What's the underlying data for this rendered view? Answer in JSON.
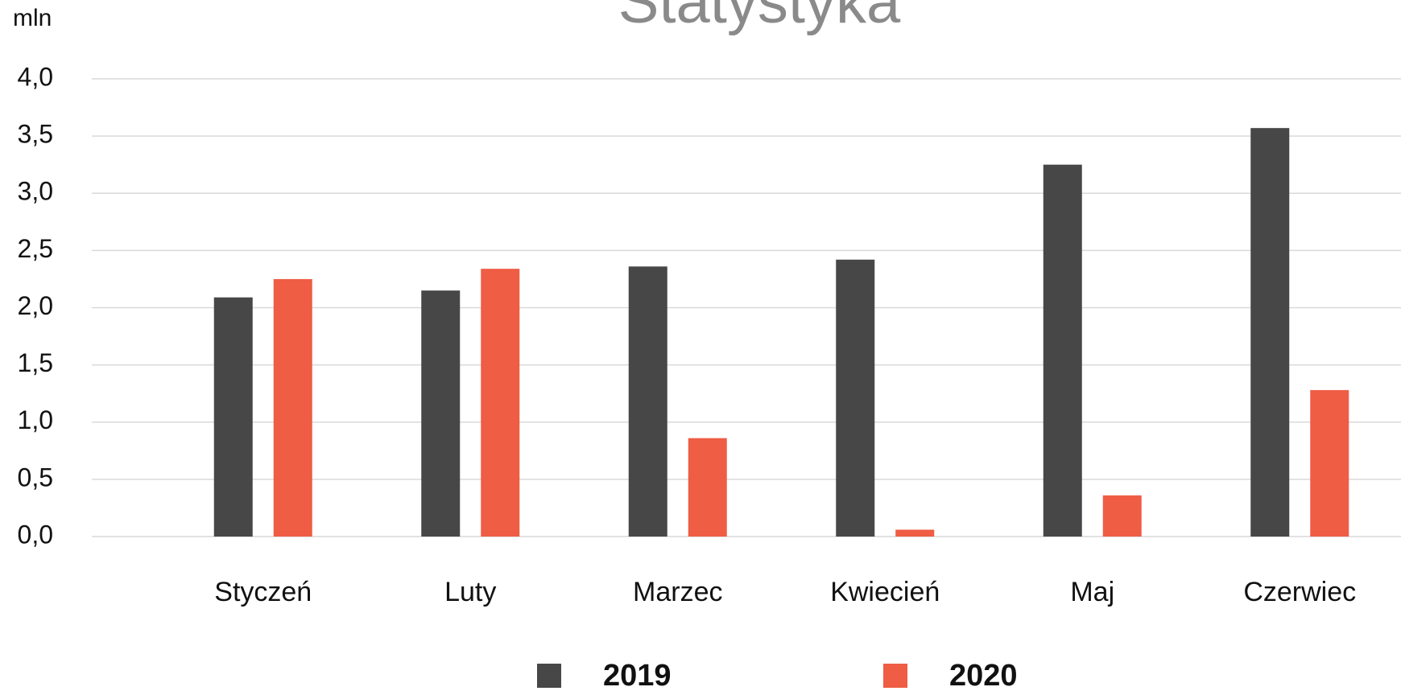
{
  "chart_data": {
    "type": "bar",
    "title": "Statystyka",
    "y_label": "mln",
    "categories": [
      "Styczeń",
      "Luty",
      "Marzec",
      "Kwiecień",
      "Maj",
      "Czerwiec"
    ],
    "series": [
      {
        "name": "2019",
        "color": "#474747",
        "values": [
          2.09,
          2.15,
          2.36,
          2.42,
          3.25,
          3.57
        ]
      },
      {
        "name": "2020",
        "color": "#ef5d44",
        "values": [
          2.25,
          2.34,
          0.86,
          0.06,
          0.36,
          1.28
        ]
      }
    ],
    "ylim": [
      0,
      4
    ],
    "yticks": [
      {
        "value": 0,
        "label": "0,0"
      },
      {
        "value": 0.5,
        "label": "0,5"
      },
      {
        "value": 1,
        "label": "1,0"
      },
      {
        "value": 1.5,
        "label": "1,5"
      },
      {
        "value": 2,
        "label": "2,0"
      },
      {
        "value": 2.5,
        "label": "2,5"
      },
      {
        "value": 3,
        "label": "3,0"
      },
      {
        "value": 3.5,
        "label": "3,5"
      },
      {
        "value": 4,
        "label": "4,0"
      }
    ],
    "grid": true,
    "legend": "bottom"
  }
}
